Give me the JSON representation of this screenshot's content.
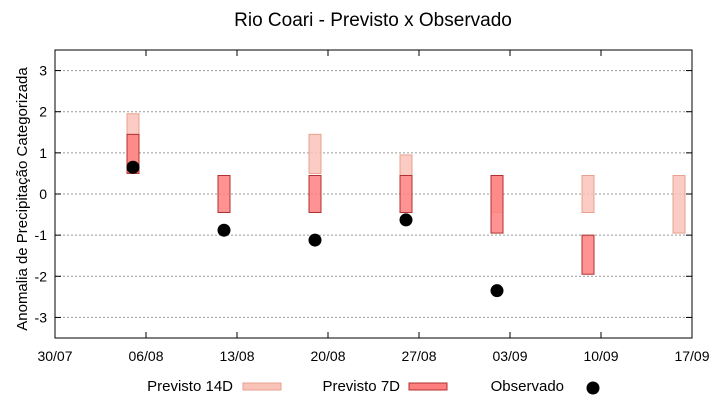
{
  "chart_data": {
    "type": "bar",
    "title": "Rio Coari - Previsto x Observado",
    "ylabel": "Anomalia de Precipitação Categorizada",
    "xlabel": "",
    "ylim": [
      -3.5,
      3.5
    ],
    "yticks": [
      -3,
      -2,
      -1,
      0,
      1,
      2,
      3
    ],
    "xlim": [
      "2024-07-30",
      "2024-09-17"
    ],
    "xticks": [
      "30/07",
      "06/08",
      "13/08",
      "20/08",
      "27/08",
      "03/09",
      "10/09",
      "17/09"
    ],
    "grid": true,
    "legend_position": "bottom",
    "series": [
      {
        "name": "Previsto 14D",
        "type": "range",
        "color": "#f9c3b8",
        "edge": "#e8a090",
        "points": [
          {
            "x": "2024-08-05",
            "low": 0.5,
            "high": 1.95
          },
          {
            "x": "2024-08-19",
            "low": 0.5,
            "high": 1.45
          },
          {
            "x": "2024-08-26",
            "low": 0.45,
            "high": 0.95
          },
          {
            "x": "2024-09-02",
            "low": -0.45,
            "high": 0.45
          },
          {
            "x": "2024-09-09",
            "low": -0.45,
            "high": 0.45
          },
          {
            "x": "2024-09-16",
            "low": -0.95,
            "high": 0.45
          }
        ]
      },
      {
        "name": "Previsto 7D",
        "type": "range",
        "color": "#ff7f7f",
        "edge": "#b03030",
        "points": [
          {
            "x": "2024-08-05",
            "low": 0.5,
            "high": 1.45
          },
          {
            "x": "2024-08-12",
            "low": -0.45,
            "high": 0.45
          },
          {
            "x": "2024-08-19",
            "low": -0.45,
            "high": 0.45
          },
          {
            "x": "2024-08-26",
            "low": -0.45,
            "high": 0.45
          },
          {
            "x": "2024-09-02",
            "low": -0.95,
            "high": 0.45
          },
          {
            "x": "2024-09-09",
            "low": -1.95,
            "high": -1.0
          }
        ]
      },
      {
        "name": "Observado",
        "type": "scatter",
        "color": "#000000",
        "points": [
          {
            "x": "2024-08-05",
            "y": 0.65
          },
          {
            "x": "2024-08-12",
            "y": -0.88
          },
          {
            "x": "2024-08-19",
            "y": -1.12
          },
          {
            "x": "2024-08-26",
            "y": -0.63
          },
          {
            "x": "2024-09-02",
            "y": -2.35
          }
        ]
      }
    ]
  }
}
